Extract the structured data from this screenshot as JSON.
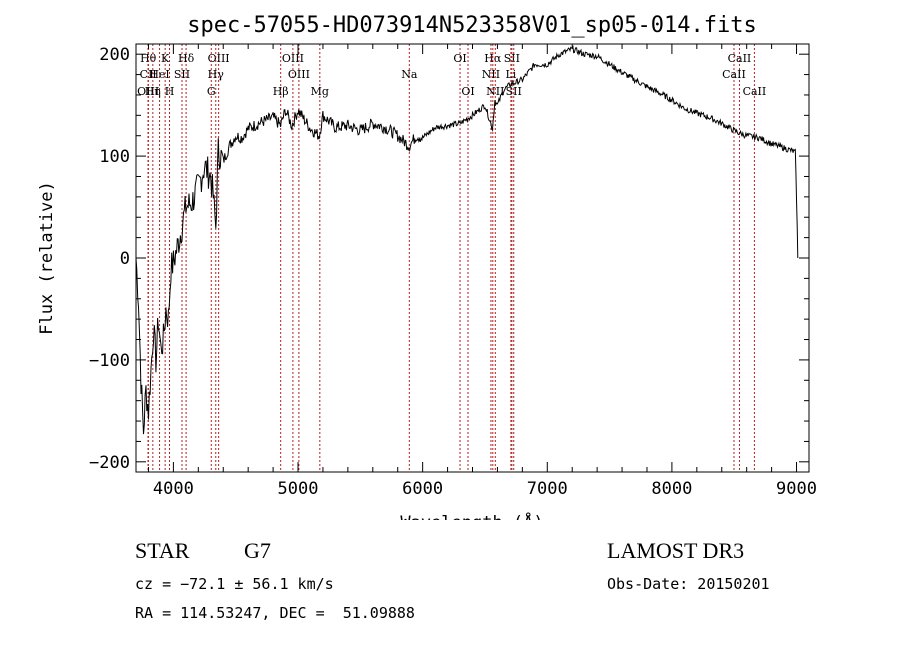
{
  "chart_data": {
    "type": "line",
    "title": "spec-57055-HD073914N523358V01_sp05-014.fits",
    "xlabel": "Wavelength (Å)",
    "ylabel": "Flux (relative)",
    "xlim": [
      3700,
      9100
    ],
    "ylim": [
      -210,
      210
    ],
    "xticks": [
      4000,
      5000,
      6000,
      7000,
      8000,
      9000
    ],
    "yticks": [
      -200,
      -100,
      0,
      100,
      200
    ],
    "series": [
      {
        "name": "flux",
        "x": [
          3700,
          3720,
          3740,
          3760,
          3780,
          3800,
          3820,
          3840,
          3860,
          3880,
          3900,
          3920,
          3940,
          3960,
          3980,
          4000,
          4050,
          4100,
          4150,
          4200,
          4250,
          4300,
          4320,
          4340,
          4360,
          4400,
          4450,
          4500,
          4550,
          4600,
          4700,
          4800,
          4860,
          4900,
          4950,
          5000,
          5100,
          5170,
          5200,
          5300,
          5400,
          5500,
          5600,
          5700,
          5800,
          5890,
          5950,
          6000,
          6100,
          6200,
          6300,
          6400,
          6500,
          6560,
          6580,
          6600,
          6650,
          6700,
          6800,
          6900,
          7000,
          7100,
          7200,
          7300,
          7400,
          7500,
          7600,
          7700,
          7800,
          7900,
          8000,
          8100,
          8200,
          8300,
          8400,
          8500,
          8550,
          8600,
          8700,
          8800,
          8900,
          8990,
          9000,
          9010
        ],
        "y": [
          0,
          -40,
          -120,
          -170,
          -130,
          -150,
          -110,
          -70,
          -100,
          -60,
          -90,
          -80,
          -50,
          -60,
          -10,
          -5,
          20,
          50,
          55,
          70,
          90,
          80,
          60,
          30,
          105,
          95,
          110,
          120,
          118,
          127,
          133,
          138,
          130,
          145,
          130,
          145,
          127,
          120,
          140,
          128,
          130,
          125,
          132,
          128,
          120,
          110,
          120,
          118,
          128,
          130,
          132,
          140,
          150,
          127,
          155,
          150,
          165,
          170,
          175,
          190,
          190,
          200,
          205,
          200,
          198,
          190,
          182,
          175,
          168,
          162,
          155,
          147,
          142,
          138,
          132,
          125,
          122,
          120,
          118,
          112,
          108,
          104,
          60,
          0
        ]
      }
    ],
    "lines": [
      {
        "name": "Hθ",
        "x": 3798,
        "row": 1
      },
      {
        "name": "CII",
        "x": 3798,
        "row": 2
      },
      {
        "name": "OIII",
        "x": 3798,
        "row": 3
      },
      {
        "name": "K",
        "x": 3934,
        "row": 1
      },
      {
        "name": "HeI",
        "x": 3889,
        "row": 2
      },
      {
        "name": "Hη",
        "x": 3835,
        "row": 3
      },
      {
        "name": "H",
        "x": 3969,
        "row": 3
      },
      {
        "name": "SII",
        "x": 4069,
        "row": 2
      },
      {
        "name": "Hδ",
        "x": 4102,
        "row": 1
      },
      {
        "name": "OIII",
        "x": 4363,
        "row": 1
      },
      {
        "name": "Hγ",
        "x": 4340,
        "row": 2
      },
      {
        "name": "G",
        "x": 4304,
        "row": 3
      },
      {
        "name": "Hβ",
        "x": 4861,
        "row": 3
      },
      {
        "name": "OIII",
        "x": 4959,
        "row": 1
      },
      {
        "name": "OIII",
        "x": 5007,
        "row": 2
      },
      {
        "name": "Mg",
        "x": 5175,
        "row": 3
      },
      {
        "name": "Na",
        "x": 5893,
        "row": 2
      },
      {
        "name": "OI",
        "x": 6300,
        "row": 1
      },
      {
        "name": "OI",
        "x": 6364,
        "row": 3
      },
      {
        "name": "Hα",
        "x": 6563,
        "row": 1
      },
      {
        "name": "NII",
        "x": 6548,
        "row": 2
      },
      {
        "name": "NII",
        "x": 6583,
        "row": 3
      },
      {
        "name": "SII",
        "x": 6716,
        "row": 1
      },
      {
        "name": "Li",
        "x": 6708,
        "row": 2
      },
      {
        "name": "SII",
        "x": 6731,
        "row": 3
      },
      {
        "name": "CaII",
        "x": 8542,
        "row": 1
      },
      {
        "name": "CaII",
        "x": 8498,
        "row": 2
      },
      {
        "name": "CaII",
        "x": 8662,
        "row": 3
      }
    ]
  },
  "info": {
    "object_class": "STAR",
    "subclass": "G7",
    "survey": "LAMOST DR3",
    "cz": "cz = −72.1 ± 56.1 km/s",
    "obs_date": "Obs-Date: 20150201",
    "coords": "RA = 114.53247, DEC =  51.09888"
  }
}
